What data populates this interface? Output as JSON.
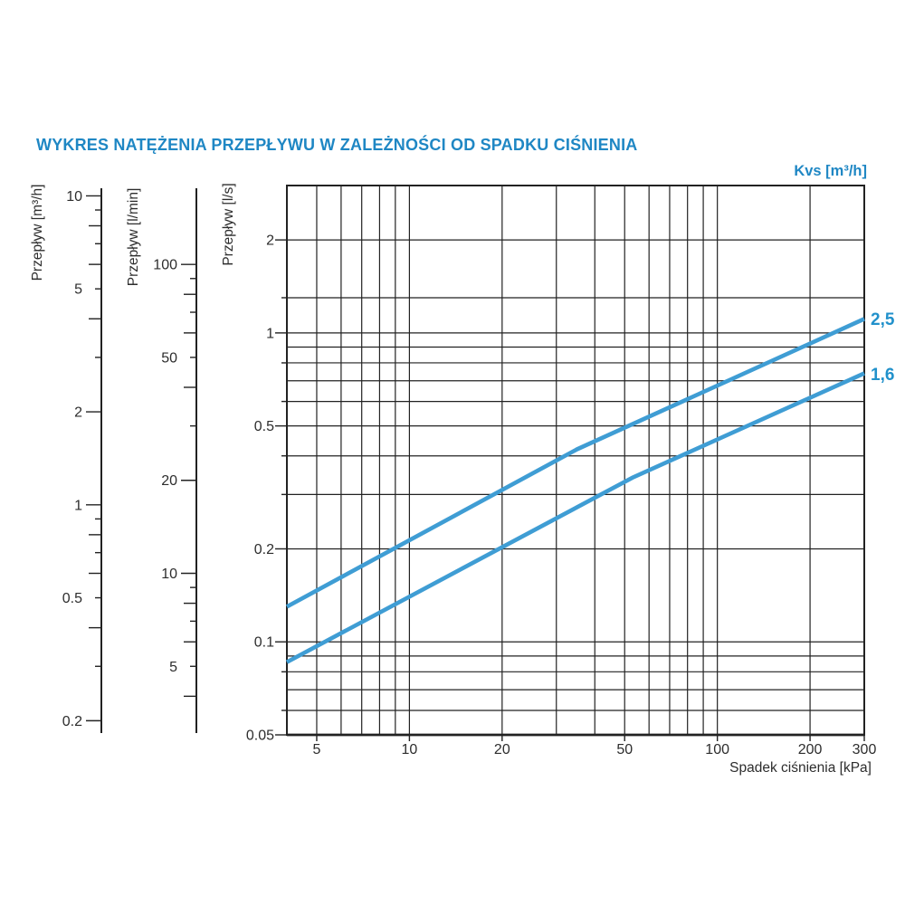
{
  "colors": {
    "title_blue": "#1f87c4",
    "line_blue": "#3f9dd4",
    "grid": "#222222",
    "text": "#2d2d2d"
  },
  "chart_data": {
    "type": "line",
    "title": "WYKRES NATĘŻENIA PRZEPŁYWU W ZALEŻNOŚCI OD SPADKU CIŚNIENIA",
    "kvs_label": "Kvs [m³/h]",
    "x_axis": {
      "label": "Spadek ciśnienia [kPa]",
      "scale": "log",
      "min": 4,
      "max": 300,
      "gridlines": [
        5,
        6,
        7,
        8,
        9,
        10,
        20,
        30,
        40,
        50,
        60,
        70,
        80,
        90,
        100,
        200,
        300
      ],
      "ticks": [
        {
          "v": 5,
          "label": "5"
        },
        {
          "v": 10,
          "label": "10"
        },
        {
          "v": 20,
          "label": "20"
        },
        {
          "v": 50,
          "label": "50"
        },
        {
          "v": 100,
          "label": "100"
        },
        {
          "v": 200,
          "label": "200"
        },
        {
          "v": 300,
          "label": "300"
        }
      ]
    },
    "y_axis": {
      "label": "Przepływ [l/s]",
      "scale": "log",
      "min": 0.05,
      "max": 3,
      "gridlines": [
        2,
        1.3,
        1,
        0.9,
        0.8,
        0.7,
        0.6,
        0.5,
        0.4,
        0.3,
        0.2,
        0.1,
        0.09,
        0.08,
        0.07,
        0.06
      ],
      "ticks": [
        {
          "v": 2,
          "label": "2"
        },
        {
          "v": 1.3
        },
        {
          "v": 1,
          "label": "1"
        },
        {
          "v": 0.8
        },
        {
          "v": 0.6
        },
        {
          "v": 0.5,
          "label": "0.5"
        },
        {
          "v": 0.4
        },
        {
          "v": 0.3
        },
        {
          "v": 0.2,
          "label": "0.2"
        },
        {
          "v": 0.1,
          "label": "0.1"
        },
        {
          "v": 0.08
        },
        {
          "v": 0.06
        },
        {
          "v": 0.05,
          "label": "0.05"
        }
      ]
    },
    "nomogram_scales": [
      {
        "label": "Przepływ [m³/h]",
        "unit": "m³/h",
        "per_ls": 3.6,
        "ticks": [
          {
            "v": 10,
            "s": "l",
            "label": "10"
          },
          {
            "v": 9,
            "s": "s"
          },
          {
            "v": 8,
            "s": "l"
          },
          {
            "v": 7,
            "s": "s"
          },
          {
            "v": 6,
            "s": "l"
          },
          {
            "v": 5,
            "s": "s",
            "label": "5"
          },
          {
            "v": 4,
            "s": "l"
          },
          {
            "v": 3,
            "s": "s"
          },
          {
            "v": 2,
            "s": "l",
            "label": "2"
          },
          {
            "v": 1,
            "s": "l",
            "label": "1"
          },
          {
            "v": 0.9,
            "s": "s"
          },
          {
            "v": 0.8,
            "s": "l"
          },
          {
            "v": 0.7,
            "s": "s"
          },
          {
            "v": 0.6,
            "s": "l"
          },
          {
            "v": 0.5,
            "s": "s",
            "label": "0.5"
          },
          {
            "v": 0.4,
            "s": "l"
          },
          {
            "v": 0.3,
            "s": "s"
          },
          {
            "v": 0.2,
            "s": "l",
            "label": "0.2"
          }
        ]
      },
      {
        "label": "Przepływ [l/min]",
        "unit": "l/min",
        "per_ls": 60,
        "ticks": [
          {
            "v": 100,
            "s": "l",
            "label": "100"
          },
          {
            "v": 90,
            "s": "s"
          },
          {
            "v": 80,
            "s": "l"
          },
          {
            "v": 70,
            "s": "s"
          },
          {
            "v": 60,
            "s": "l"
          },
          {
            "v": 50,
            "s": "s",
            "label": "50"
          },
          {
            "v": 40,
            "s": "l"
          },
          {
            "v": 30,
            "s": "s"
          },
          {
            "v": 20,
            "s": "l",
            "label": "20"
          },
          {
            "v": 10,
            "s": "l",
            "label": "10"
          },
          {
            "v": 9,
            "s": "s"
          },
          {
            "v": 8,
            "s": "l"
          },
          {
            "v": 7,
            "s": "s"
          },
          {
            "v": 6,
            "s": "l"
          },
          {
            "v": 5,
            "s": "s",
            "label": "5"
          },
          {
            "v": 4,
            "s": "l"
          }
        ]
      }
    ],
    "series": [
      {
        "label": "2,5",
        "kvs": 2.5,
        "points": [
          [
            4,
            0.13
          ],
          [
            35,
            0.42
          ],
          [
            300,
            1.11
          ]
        ]
      },
      {
        "label": "1,6",
        "kvs": 1.6,
        "points": [
          [
            4,
            0.086
          ],
          [
            53,
            0.34
          ],
          [
            300,
            0.74
          ]
        ]
      }
    ]
  }
}
